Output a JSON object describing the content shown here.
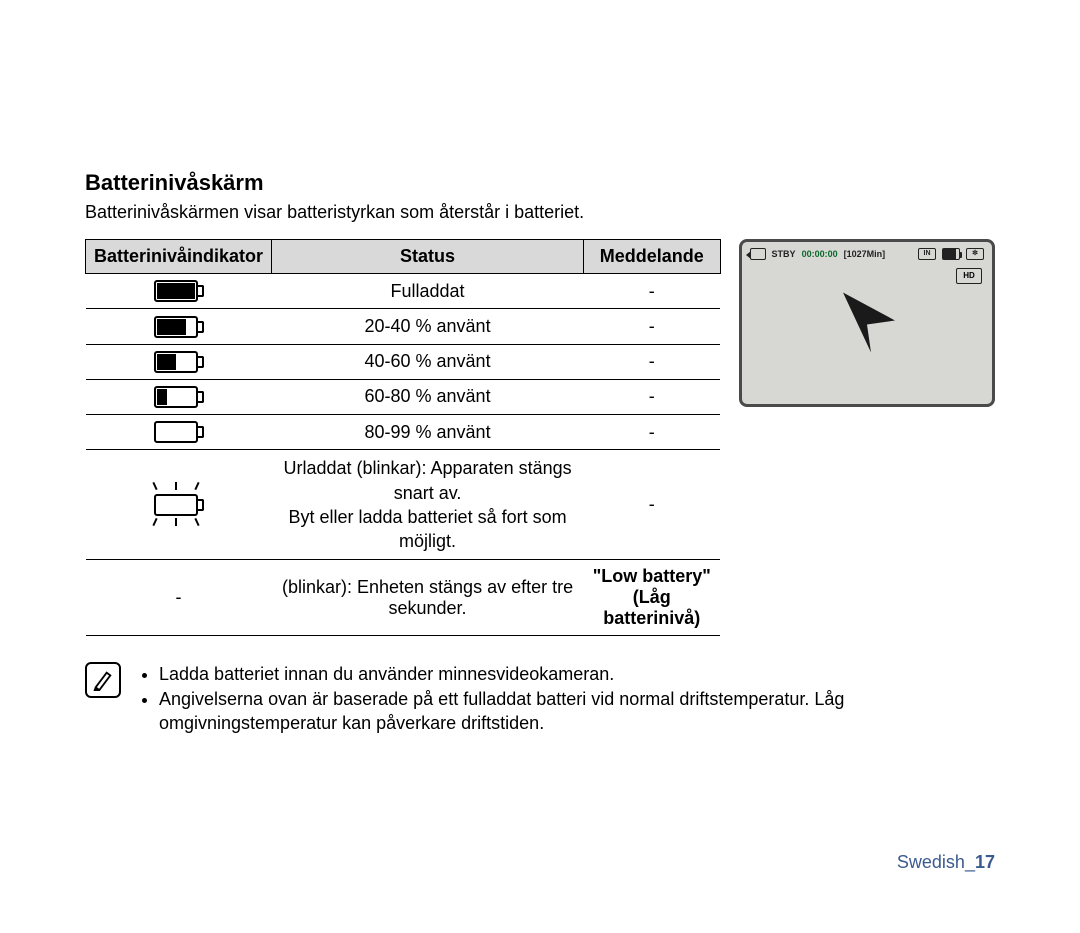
{
  "heading": "Batterinivåskärm",
  "subtitle": "Batterinivåskärmen visar batteristyrkan som återstår i batteriet.",
  "table": {
    "headers": {
      "indicator": "Batterinivåindikator",
      "status": "Status",
      "message": "Meddelande"
    },
    "rows": [
      {
        "fill_pct": 100,
        "blink": false,
        "status": "Fulladdat",
        "message": "-"
      },
      {
        "fill_pct": 75,
        "blink": false,
        "status": "20-40 % använt",
        "message": "-"
      },
      {
        "fill_pct": 50,
        "blink": false,
        "status": "40-60 % använt",
        "message": "-"
      },
      {
        "fill_pct": 25,
        "blink": false,
        "status": "60-80 % använt",
        "message": "-"
      },
      {
        "fill_pct": 0,
        "blink": false,
        "status": "80-99 % använt",
        "message": "-"
      },
      {
        "fill_pct": 0,
        "blink": true,
        "status_lines": [
          "Urladdat (blinkar): Apparaten stängs snart av.",
          "Byt eller ladda batteriet så fort som möjligt."
        ],
        "message": "-"
      },
      {
        "indicator_text": "-",
        "status": "(blinkar): Enheten stängs av efter tre sekunder.",
        "message_lines": [
          "\"Low battery\"",
          "(Låg batterinivå)"
        ],
        "message_bold": true
      }
    ]
  },
  "preview": {
    "stby": "STBY",
    "time": "00:00:00",
    "remain": "[1027Min]",
    "in_label": "IN",
    "res_label": "HD"
  },
  "notes": [
    "Ladda batteriet innan du använder minnesvideokameran.",
    "Angivelserna ovan är baserade på ett fulladdat batteri vid normal driftstemperatur. Låg omgivningstemperatur kan påverkare driftstiden."
  ],
  "footer": {
    "lang": "Swedish",
    "page": "17"
  },
  "colors": {
    "header_bg": "#d9d9d9",
    "border": "#000000",
    "preview_bg": "#d7d7d4",
    "preview_border": "#4a4a4a",
    "footer_color": "#3b5b8f"
  }
}
